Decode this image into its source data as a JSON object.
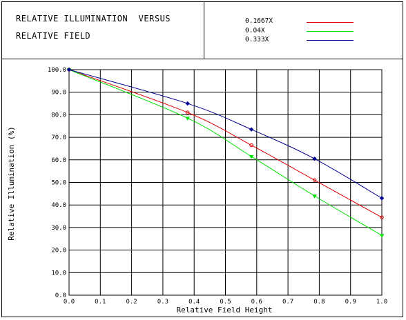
{
  "header": {
    "title_line_1": "RELATIVE ILLUMINATION  VERSUS",
    "title_line_2": "RELATIVE FIELD"
  },
  "chart_data": {
    "type": "line",
    "title": "RELATIVE ILLUMINATION VERSUS RELATIVE FIELD",
    "xlabel": "Relative Field Height",
    "ylabel": "Relative Illumination (%)",
    "xlim": [
      0,
      1.0
    ],
    "ylim": [
      0,
      100
    ],
    "x_ticks": [
      "0.0",
      "0.1",
      "0.2",
      "0.3",
      "0.4",
      "0.5",
      "0.6",
      "0.7",
      "0.8",
      "0.9",
      "1.0"
    ],
    "y_ticks": [
      "0.0",
      "10.0",
      "20.0",
      "30.0",
      "40.0",
      "50.0",
      "60.0",
      "70.0",
      "80.0",
      "90.0",
      "100.0"
    ],
    "grid": true,
    "legend_position": "top-right",
    "series": [
      {
        "name": "0.1667X",
        "color": "#e00000",
        "x": [
          0.0,
          0.379,
          0.583,
          0.785,
          1.0
        ],
        "y": [
          100.0,
          81.0,
          66.5,
          51.0,
          34.5
        ]
      },
      {
        "name": "0.04X",
        "color": "#00e000",
        "x": [
          0.0,
          0.379,
          0.583,
          0.785,
          1.0
        ],
        "y": [
          100.0,
          78.5,
          61.5,
          44.0,
          26.5
        ]
      },
      {
        "name": "0.333X",
        "color": "#000090",
        "x": [
          0.0,
          0.379,
          0.583,
          0.785,
          1.0
        ],
        "y": [
          100.0,
          85.0,
          73.5,
          60.5,
          43.0
        ]
      }
    ]
  }
}
